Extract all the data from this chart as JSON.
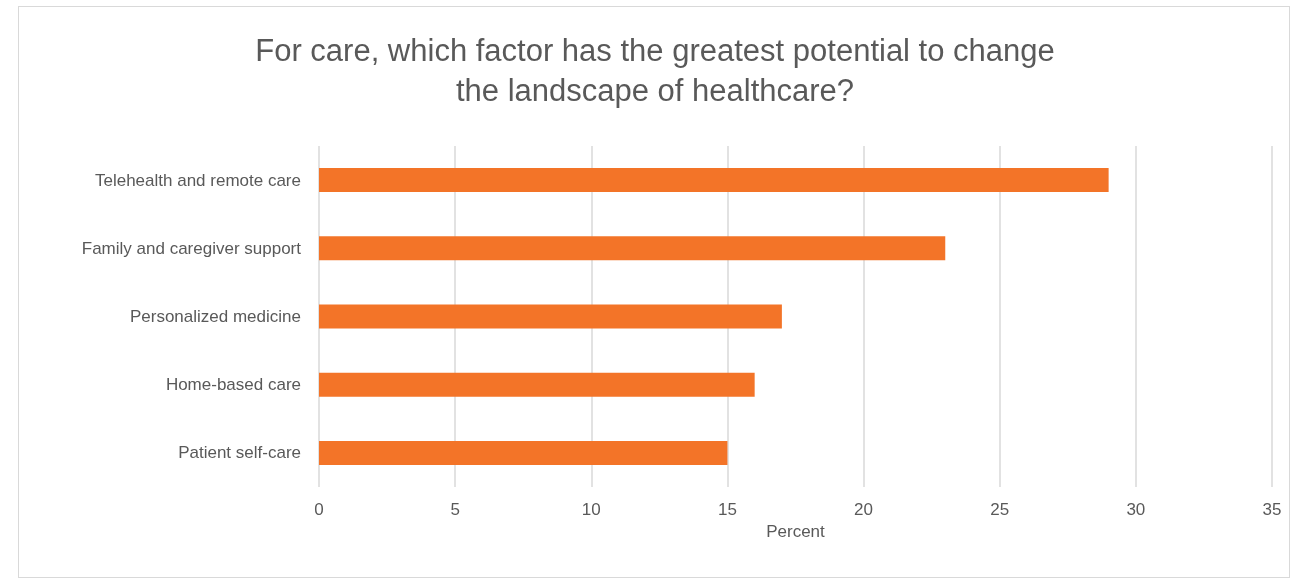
{
  "chart_data": {
    "type": "bar",
    "orientation": "horizontal",
    "title": "For care, which factor has the greatest potential to change\nthe landscape of healthcare?",
    "xlabel": "Percent",
    "categories": [
      "Telehealth and remote care",
      "Family and caregiver support",
      "Personalized medicine",
      "Home-based care",
      "Patient self-care"
    ],
    "values": [
      29,
      23,
      17,
      16,
      15
    ],
    "color": "#f37428",
    "xlim": [
      0,
      35
    ],
    "xticks": [
      0,
      5,
      10,
      15,
      20,
      25,
      30,
      35
    ],
    "grid": "x"
  }
}
